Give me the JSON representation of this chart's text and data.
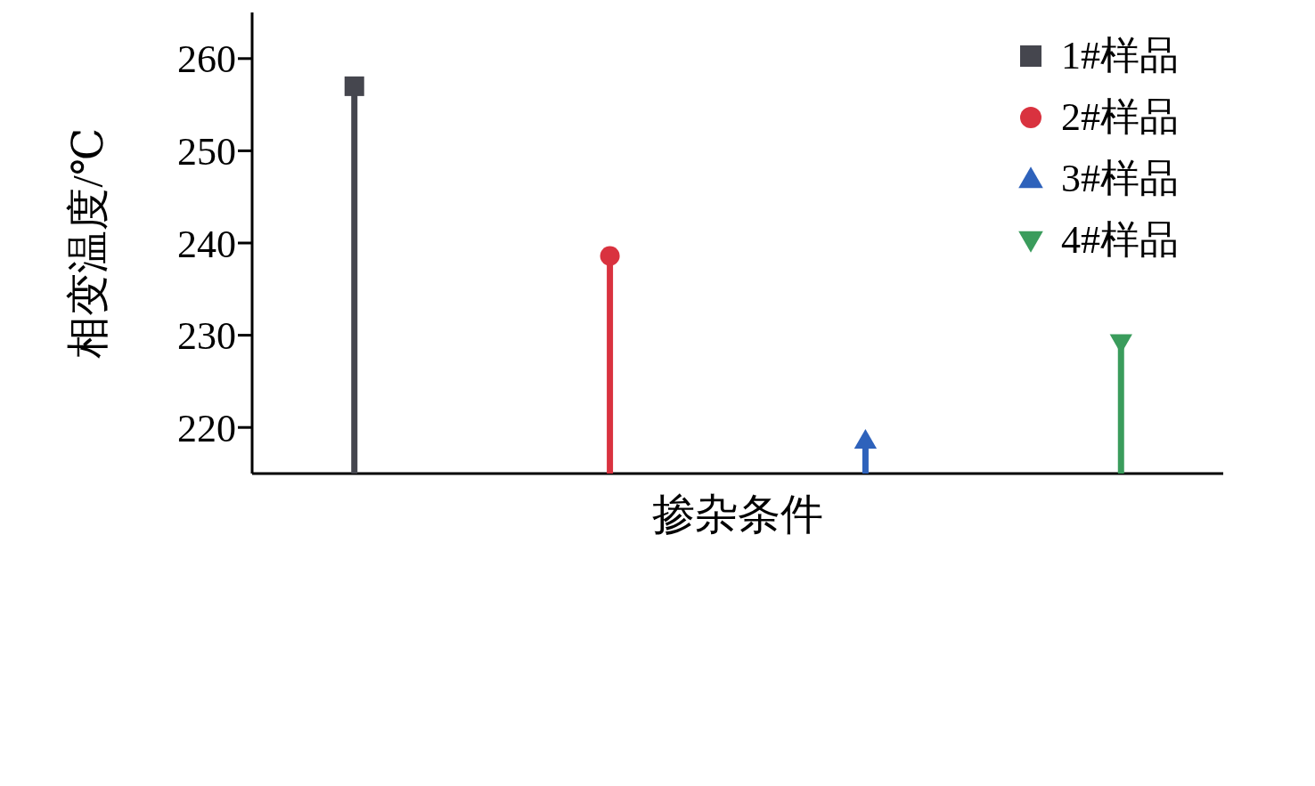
{
  "chart_data": {
    "type": "lollipop",
    "xlabel": "掺杂条件",
    "ylabel": "相变温度/℃",
    "categories": [
      null,
      null,
      null,
      null
    ],
    "series": [
      {
        "name": "1#样品",
        "color": "#45464e",
        "marker": "square",
        "values": [
          257,
          null,
          null,
          null
        ]
      },
      {
        "name": "2#样品",
        "color": "#d9323f",
        "marker": "circle",
        "values": [
          null,
          238.6,
          null,
          null
        ]
      },
      {
        "name": "3#样品",
        "color": "#2e62bb",
        "marker": "triangle",
        "values": [
          null,
          null,
          218.6,
          null
        ]
      },
      {
        "name": "4#样品",
        "color": "#3a9c5c",
        "marker": "triangle-down",
        "values": [
          null,
          null,
          null,
          229.2
        ]
      }
    ],
    "ylim": [
      215,
      265
    ],
    "yticks": [
      220,
      230,
      240,
      250,
      260
    ],
    "grid": false,
    "legend": "top right"
  }
}
